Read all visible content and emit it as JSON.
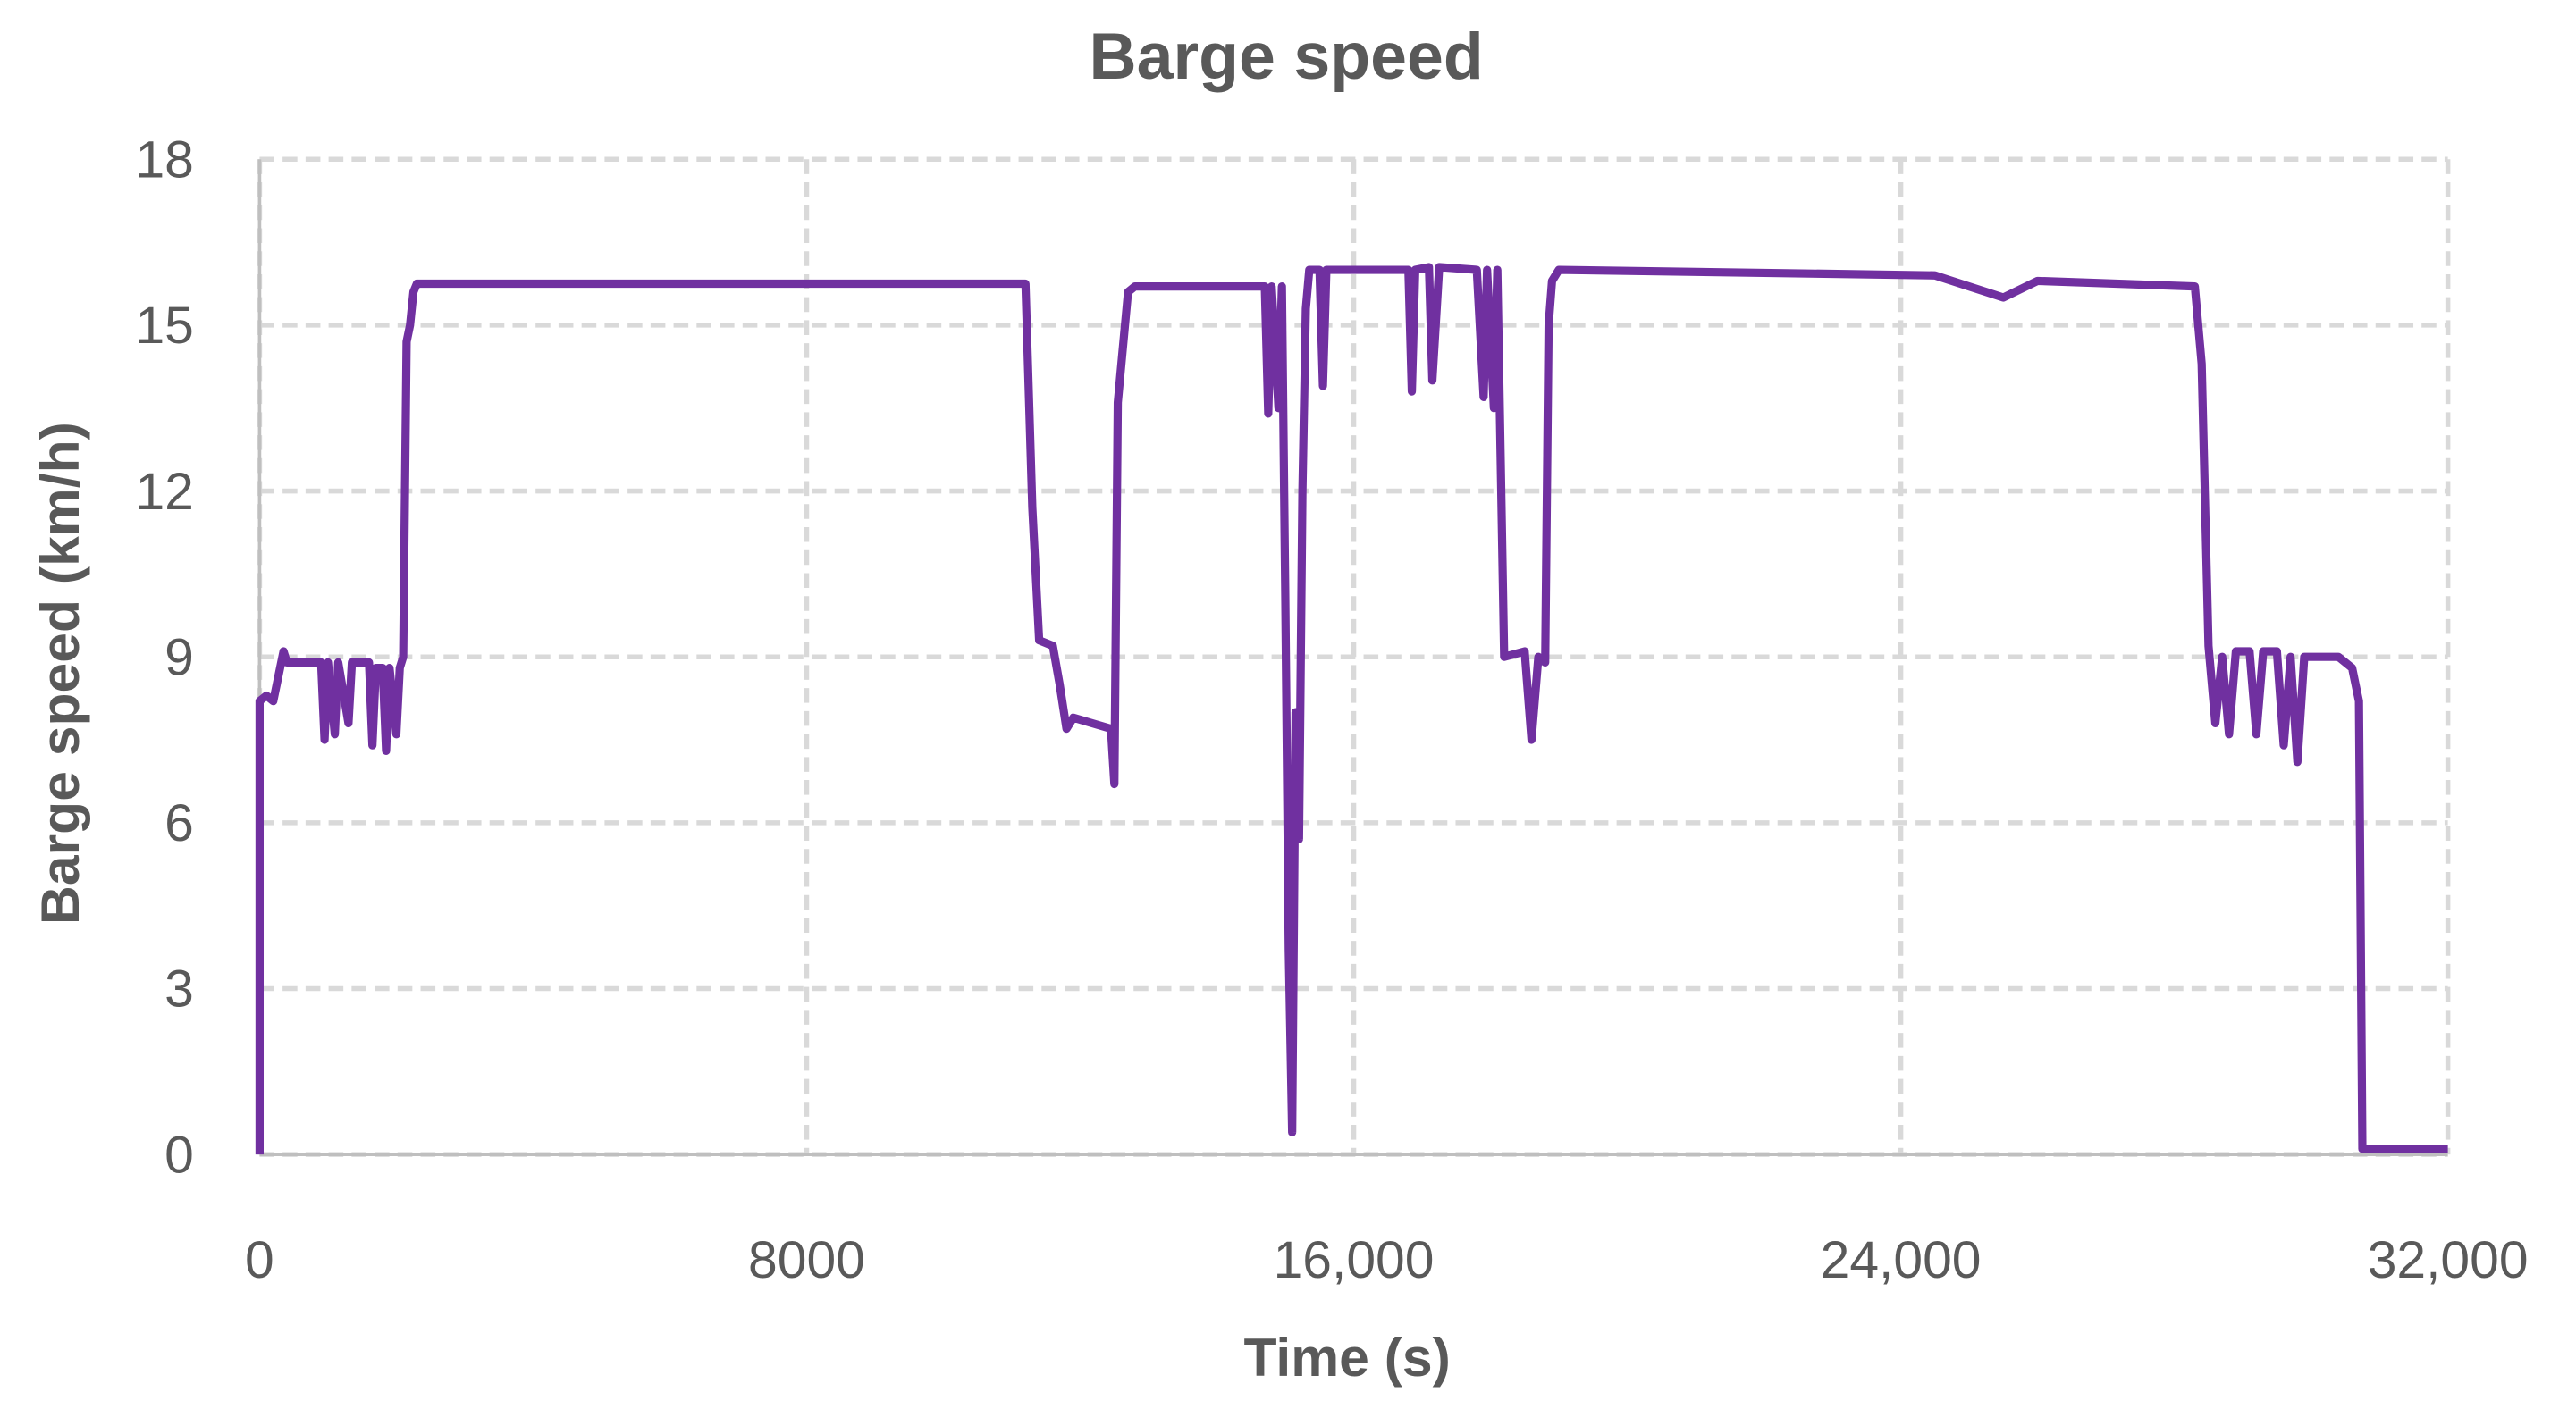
{
  "chart_data": {
    "type": "line",
    "title": "Barge speed",
    "x_label": "Time (s)",
    "y_label": "Barge speed (km/h)",
    "xlim": [
      0,
      32000
    ],
    "xticks": [
      0,
      8000,
      {
        "value": 16000,
        "label": "16,000"
      },
      {
        "value": 24000,
        "label": "24,000"
      },
      {
        "value": 32000,
        "label": "32,000"
      }
    ],
    "ylim": [
      0,
      18
    ],
    "yticks": [
      0,
      3,
      6,
      9,
      12,
      15,
      18
    ],
    "grid": true,
    "x": [
      0,
      0,
      100,
      200,
      300,
      350,
      400,
      900,
      950,
      1000,
      1100,
      1150,
      1300,
      1350,
      1600,
      1650,
      1700,
      1800,
      1850,
      1900,
      2000,
      2050,
      2100,
      2150,
      2200,
      2250,
      2300,
      11200,
      11300,
      11400,
      11600,
      11700,
      11800,
      11900,
      12450,
      12500,
      12550,
      12700,
      12800,
      14700,
      14750,
      14800,
      14900,
      14950,
      15000,
      15050,
      15100,
      15150,
      15200,
      15250,
      15300,
      15350,
      15500,
      15550,
      15600,
      16800,
      16850,
      16900,
      17100,
      17150,
      17250,
      17800,
      17900,
      17950,
      18050,
      18100,
      18200,
      18500,
      18600,
      18700,
      18800,
      18850,
      18900,
      19000,
      24500,
      25000,
      25500,
      26000,
      28300,
      28400,
      28500,
      28600,
      28700,
      28800,
      28900,
      29100,
      29200,
      29300,
      29500,
      29600,
      29700,
      29800,
      29900,
      30400,
      30600,
      30700,
      30750,
      32000
    ],
    "series": [
      {
        "name": "Barge speed",
        "color": "#7030a0",
        "values": [
          0,
          8.2,
          8.3,
          8.2,
          8.8,
          9.1,
          8.9,
          8.9,
          7.5,
          8.9,
          7.6,
          8.9,
          7.8,
          8.9,
          8.9,
          7.4,
          8.8,
          8.8,
          7.3,
          8.8,
          7.6,
          8.8,
          9,
          14.7,
          15,
          15.6,
          15.75,
          15.75,
          11.7,
          9.3,
          9.2,
          8.5,
          7.7,
          7.9,
          7.7,
          6.7,
          13.6,
          15.6,
          15.7,
          15.7,
          13.4,
          15.7,
          13.5,
          15.7,
          10,
          3.7,
          0.4,
          8,
          5.7,
          12,
          15.3,
          16,
          16,
          13.9,
          16,
          16,
          13.8,
          16,
          16.05,
          14,
          16.05,
          16,
          13.7,
          16,
          13.5,
          16,
          9,
          9.1,
          7.5,
          9,
          8.9,
          15,
          15.8,
          16,
          15.9,
          15.7,
          15.5,
          15.8,
          15.7,
          14.3,
          9.2,
          7.8,
          9,
          7.6,
          9.1,
          9.1,
          7.6,
          9.1,
          9.1,
          7.4,
          9,
          7.1,
          9,
          9,
          8.8,
          8.2,
          0.1,
          0.1
        ]
      }
    ]
  }
}
